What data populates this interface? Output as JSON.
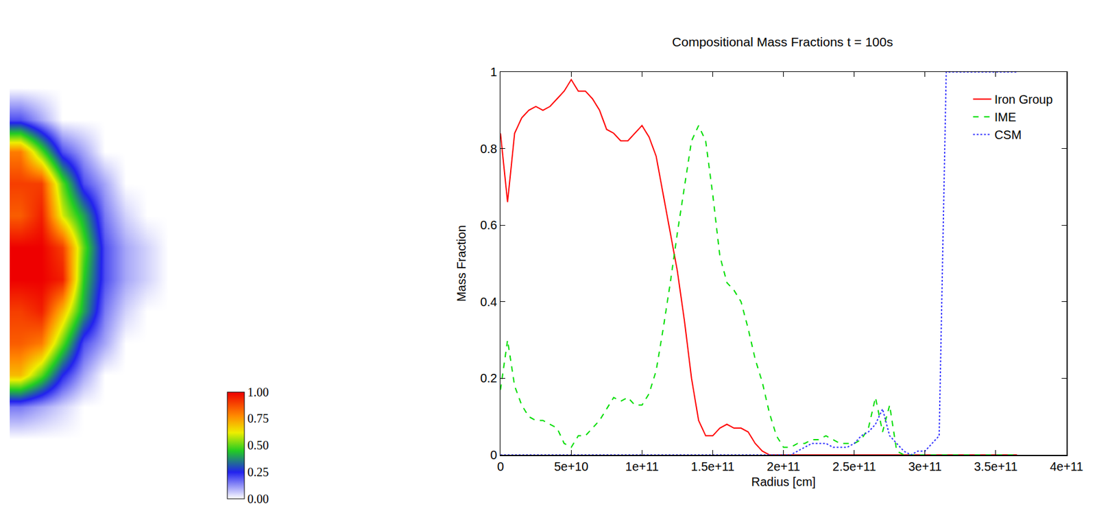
{
  "chart_data": [
    {
      "type": "heatmap",
      "cells": [
        [
          0,
          0,
          0,
          0,
          0,
          0,
          0,
          0
        ],
        [
          0.2,
          0.1,
          0,
          0,
          0,
          0,
          0,
          0
        ],
        [
          0.8,
          0.5,
          0.2,
          0.1,
          0,
          0,
          0,
          0
        ],
        [
          0.9,
          0.9,
          0.5,
          0.2,
          0.1,
          0,
          0,
          0
        ],
        [
          0.85,
          0.95,
          0.6,
          0.4,
          0.15,
          0.05,
          0,
          0
        ],
        [
          1,
          1,
          0.9,
          0.5,
          0.2,
          0.1,
          0.05,
          0
        ],
        [
          1,
          1,
          0.95,
          0.45,
          0.2,
          0.1,
          0.05,
          0
        ],
        [
          0.9,
          0.95,
          0.7,
          0.4,
          0.15,
          0.05,
          0,
          0
        ],
        [
          0.85,
          0.8,
          0.5,
          0.2,
          0.1,
          0,
          0,
          0
        ],
        [
          0.7,
          0.5,
          0.25,
          0.1,
          0,
          0,
          0,
          0
        ],
        [
          0.15,
          0.1,
          0.05,
          0,
          0,
          0,
          0,
          0
        ],
        [
          0,
          0,
          0,
          0,
          0,
          0,
          0,
          0
        ]
      ],
      "colorbar": {
        "range": [
          0,
          1
        ],
        "ticks": [
          {
            "value": 0,
            "label": "0.00"
          },
          {
            "value": 0.25,
            "label": "0.25"
          },
          {
            "value": 0.5,
            "label": "0.50"
          },
          {
            "value": 0.75,
            "label": "0.75"
          },
          {
            "value": 1,
            "label": "1.00"
          }
        ]
      },
      "tick_labels": false
    },
    {
      "type": "line",
      "title": "Compositional Mass Fractions t = 100s",
      "x_label": "Radius [cm]",
      "y_label": "Mass Fraction",
      "x": [
        0,
        5000000000.0,
        10000000000.0,
        15000000000.0,
        20000000000.0,
        25000000000.0,
        30000000000.0,
        35000000000.0,
        40000000000.0,
        45000000000.0,
        50000000000.0,
        55000000000.0,
        60000000000.0,
        65000000000.0,
        70000000000.0,
        75000000000.0,
        80000000000.0,
        85000000000.0,
        90000000000.0,
        95000000000.0,
        100000000000.0,
        105000000000.0,
        110000000000.0,
        115000000000.0,
        120000000000.0,
        125000000000.0,
        130000000000.0,
        135000000000.0,
        140000000000.0,
        145000000000.0,
        150000000000.0,
        155000000000.0,
        160000000000.0,
        165000000000.0,
        170000000000.0,
        175000000000.0,
        180000000000.0,
        185000000000.0,
        190000000000.0,
        195000000000.0,
        200000000000.0,
        205000000000.0,
        210000000000.0,
        215000000000.0,
        220000000000.0,
        225000000000.0,
        230000000000.0,
        235000000000.0,
        240000000000.0,
        245000000000.0,
        250000000000.0,
        255000000000.0,
        260000000000.0,
        265000000000.0,
        270000000000.0,
        275000000000.0,
        280000000000.0,
        285000000000.0,
        290000000000.0,
        295000000000.0,
        300000000000.0,
        305000000000.0,
        310000000000.0,
        315000000000.0,
        320000000000.0,
        325000000000.0,
        330000000000.0,
        335000000000.0,
        340000000000.0,
        345000000000.0,
        350000000000.0,
        355000000000.0,
        360000000000.0,
        365000000000.0
      ],
      "series": [
        {
          "name": "Iron Group",
          "color": "#ff0000",
          "line_style": "solid",
          "values": [
            0.84,
            0.66,
            0.84,
            0.88,
            0.9,
            0.91,
            0.9,
            0.91,
            0.93,
            0.95,
            0.98,
            0.95,
            0.95,
            0.93,
            0.9,
            0.85,
            0.84,
            0.82,
            0.82,
            0.84,
            0.86,
            0.83,
            0.78,
            0.68,
            0.58,
            0.48,
            0.35,
            0.2,
            0.09,
            0.05,
            0.05,
            0.07,
            0.08,
            0.07,
            0.07,
            0.06,
            0.03,
            0.01,
            0,
            0,
            0,
            0,
            0,
            0,
            0,
            0,
            0,
            0,
            0,
            0,
            0,
            0,
            0,
            0,
            0,
            0,
            0,
            0,
            0,
            0,
            0,
            0,
            0,
            0,
            0,
            0,
            0,
            0,
            0,
            0,
            0,
            0,
            0,
            0
          ]
        },
        {
          "name": "IME",
          "color": "#00dd00",
          "line_style": "dashed",
          "values": [
            0.17,
            0.3,
            0.18,
            0.13,
            0.1,
            0.09,
            0.09,
            0.08,
            0.07,
            0.03,
            0.02,
            0.05,
            0.05,
            0.07,
            0.09,
            0.12,
            0.15,
            0.14,
            0.15,
            0.13,
            0.13,
            0.16,
            0.22,
            0.33,
            0.45,
            0.58,
            0.7,
            0.82,
            0.86,
            0.82,
            0.68,
            0.52,
            0.45,
            0.43,
            0.4,
            0.33,
            0.25,
            0.19,
            0.11,
            0.05,
            0.02,
            0.02,
            0.03,
            0.03,
            0.04,
            0.04,
            0.05,
            0.04,
            0.03,
            0.03,
            0.03,
            0.04,
            0.07,
            0.15,
            0.06,
            0.13,
            0.01,
            0,
            0,
            0,
            0,
            0,
            0,
            0,
            0,
            0,
            0,
            0,
            0,
            0,
            0,
            0,
            0,
            0
          ]
        },
        {
          "name": "CSM",
          "color": "#3333ff",
          "line_style": "dotted",
          "values": [
            0,
            0,
            0,
            0,
            0,
            0,
            0,
            0,
            0,
            0,
            0,
            0,
            0,
            0,
            0,
            0,
            0,
            0,
            0,
            0,
            0,
            0,
            0,
            0,
            0,
            0,
            0,
            0,
            0,
            0,
            0,
            0,
            0,
            0,
            0,
            0,
            0,
            0,
            0,
            0,
            0,
            0,
            0.01,
            0.02,
            0.03,
            0.03,
            0.03,
            0.02,
            0.02,
            0.02,
            0.03,
            0.05,
            0.06,
            0.08,
            0.12,
            0.05,
            0.03,
            0.01,
            0,
            0.01,
            0.01,
            0.03,
            0.05,
            1,
            1,
            1,
            1,
            1,
            1,
            1,
            1,
            1,
            1,
            1
          ]
        }
      ],
      "xlim": [
        0,
        400000000000.0
      ],
      "ylim": [
        0,
        1
      ],
      "xticks": [
        0,
        {
          "value": 50000000000.0,
          "label": "5e+10"
        },
        {
          "value": 100000000000.0,
          "label": "1e+11"
        },
        {
          "value": 150000000000.0,
          "label": "1.5e+11"
        },
        {
          "value": 200000000000.0,
          "label": "2e+11"
        },
        {
          "value": 250000000000.0,
          "label": "2.5e+11"
        },
        {
          "value": 300000000000.0,
          "label": "3e+11"
        },
        {
          "value": 350000000000.0,
          "label": "3.5e+11"
        },
        {
          "value": 400000000000.0,
          "label": "4e+11"
        }
      ],
      "yticks": [
        0,
        0.2,
        0.4,
        0.6,
        0.8,
        1
      ],
      "grid": false,
      "legend": "upper right"
    }
  ]
}
